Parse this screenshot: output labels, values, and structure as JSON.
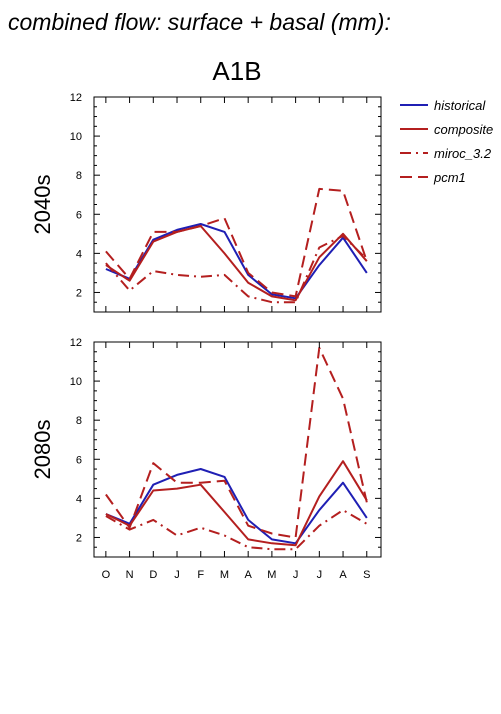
{
  "figure": {
    "title": "combined flow: surface + basal (mm):",
    "scenario": "A1B"
  },
  "legend": {
    "items": [
      {
        "label": "historical",
        "color": "#1f1fb4",
        "dash": "solid"
      },
      {
        "label": "composite",
        "color": "#b41f1f",
        "dash": "solid"
      },
      {
        "label": "miroc_3.2",
        "color": "#b41f1f",
        "dash": "dashdot"
      },
      {
        "label": "pcm1",
        "color": "#b41f1f",
        "dash": "dash"
      }
    ]
  },
  "chart_data": [
    {
      "type": "line",
      "panel_label": "2040s",
      "categories": [
        "O",
        "N",
        "D",
        "J",
        "F",
        "M",
        "A",
        "M",
        "J",
        "J",
        "A",
        "S"
      ],
      "ylim": [
        1,
        12
      ],
      "yticks": [
        2,
        4,
        6,
        8,
        10,
        12
      ],
      "grid": false,
      "legend_position": "right",
      "series": [
        {
          "name": "historical",
          "values": [
            3.2,
            2.7,
            4.7,
            5.2,
            5.5,
            5.1,
            2.9,
            1.9,
            1.7,
            3.4,
            4.8,
            3.0
          ]
        },
        {
          "name": "composite",
          "values": [
            3.4,
            2.6,
            4.6,
            5.1,
            5.4,
            4.0,
            2.5,
            1.8,
            1.6,
            3.8,
            5.0,
            3.6
          ]
        },
        {
          "name": "miroc_3.2",
          "values": [
            3.5,
            2.1,
            3.1,
            2.9,
            2.8,
            2.9,
            1.8,
            1.5,
            1.5,
            4.3,
            4.9,
            3.7
          ]
        },
        {
          "name": "pcm1",
          "values": [
            4.1,
            2.7,
            5.1,
            5.1,
            5.4,
            5.8,
            3.0,
            2.0,
            1.8,
            7.3,
            7.2,
            3.6
          ]
        }
      ]
    },
    {
      "type": "line",
      "panel_label": "2080s",
      "categories": [
        "O",
        "N",
        "D",
        "J",
        "F",
        "M",
        "A",
        "M",
        "J",
        "J",
        "A",
        "S"
      ],
      "ylim": [
        1,
        12
      ],
      "yticks": [
        2,
        4,
        6,
        8,
        10,
        12
      ],
      "grid": false,
      "series": [
        {
          "name": "historical",
          "values": [
            3.2,
            2.7,
            4.7,
            5.2,
            5.5,
            5.1,
            2.9,
            1.9,
            1.7,
            3.4,
            4.8,
            3.0
          ]
        },
        {
          "name": "composite",
          "values": [
            3.2,
            2.6,
            4.4,
            4.5,
            4.7,
            3.3,
            1.9,
            1.7,
            1.6,
            4.1,
            5.9,
            3.9
          ]
        },
        {
          "name": "miroc_3.2",
          "values": [
            3.1,
            2.4,
            2.9,
            2.1,
            2.5,
            2.1,
            1.5,
            1.4,
            1.4,
            2.6,
            3.4,
            2.7
          ]
        },
        {
          "name": "pcm1",
          "values": [
            4.2,
            2.5,
            5.8,
            4.8,
            4.8,
            4.9,
            2.6,
            2.2,
            2.0,
            11.7,
            9.1,
            3.8
          ]
        }
      ]
    }
  ]
}
